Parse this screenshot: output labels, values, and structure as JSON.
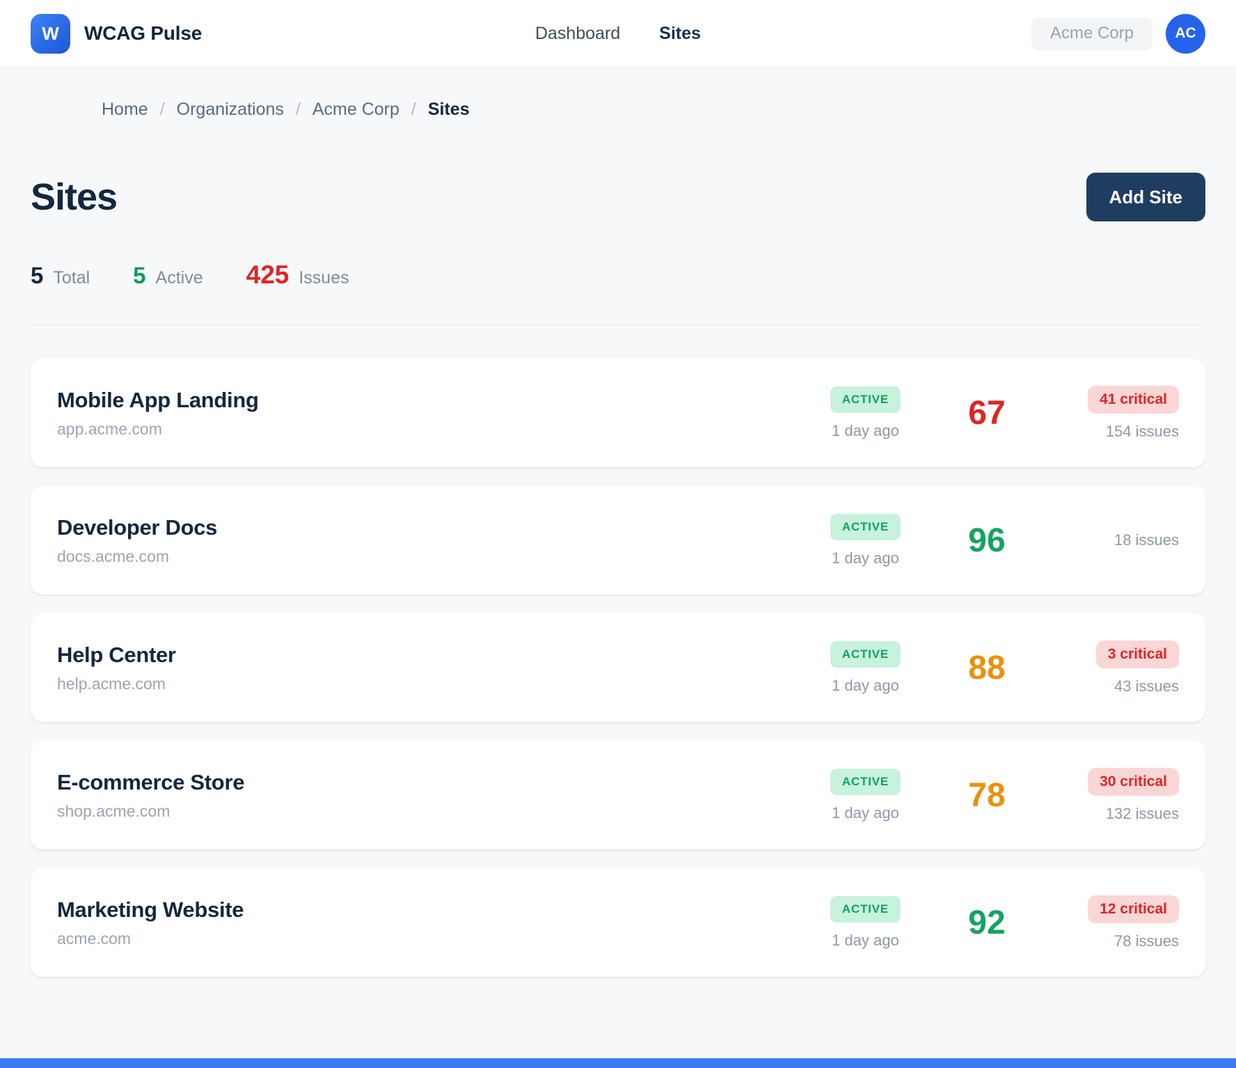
{
  "theme": {
    "primary_blue": "#2563eb",
    "navy": "#1e3d61",
    "green": "#17a263",
    "orange": "#e8920c",
    "red": "#dc2626"
  },
  "header": {
    "logo_letter": "W",
    "app_name": "WCAG Pulse",
    "nav": [
      {
        "label": "Dashboard",
        "active": false
      },
      {
        "label": "Sites",
        "active": true
      }
    ],
    "org_label": "Acme Corp",
    "avatar_initials": "AC"
  },
  "breadcrumb": {
    "separator": "/",
    "items": [
      "Home",
      "Organizations",
      "Acme Corp",
      "Sites"
    ]
  },
  "page": {
    "title": "Sites",
    "add_site_button": "Add Site"
  },
  "stats": {
    "total": {
      "value": "5",
      "label": "Total"
    },
    "active": {
      "value": "5",
      "label": "Active"
    },
    "issues": {
      "value": "425",
      "label": "Issues"
    }
  },
  "sites": [
    {
      "name": "Mobile App Landing",
      "domain": "app.acme.com",
      "status": "ACTIVE",
      "last_scan": "1 day ago",
      "score": "67",
      "score_color": "#dc2626",
      "critical_badge": "41 critical",
      "issues_count": "154 issues"
    },
    {
      "name": "Developer Docs",
      "domain": "docs.acme.com",
      "status": "ACTIVE",
      "last_scan": "1 day ago",
      "score": "96",
      "score_color": "#17a263",
      "critical_badge": "",
      "issues_count": "18 issues"
    },
    {
      "name": "Help Center",
      "domain": "help.acme.com",
      "status": "ACTIVE",
      "last_scan": "1 day ago",
      "score": "88",
      "score_color": "#e8920c",
      "critical_badge": "3 critical",
      "issues_count": "43 issues"
    },
    {
      "name": "E-commerce Store",
      "domain": "shop.acme.com",
      "status": "ACTIVE",
      "last_scan": "1 day ago",
      "score": "78",
      "score_color": "#e8920c",
      "critical_badge": "30 critical",
      "issues_count": "132 issues"
    },
    {
      "name": "Marketing Website",
      "domain": "acme.com",
      "status": "ACTIVE",
      "last_scan": "1 day ago",
      "score": "92",
      "score_color": "#17a263",
      "critical_badge": "12 critical",
      "issues_count": "78 issues"
    }
  ]
}
